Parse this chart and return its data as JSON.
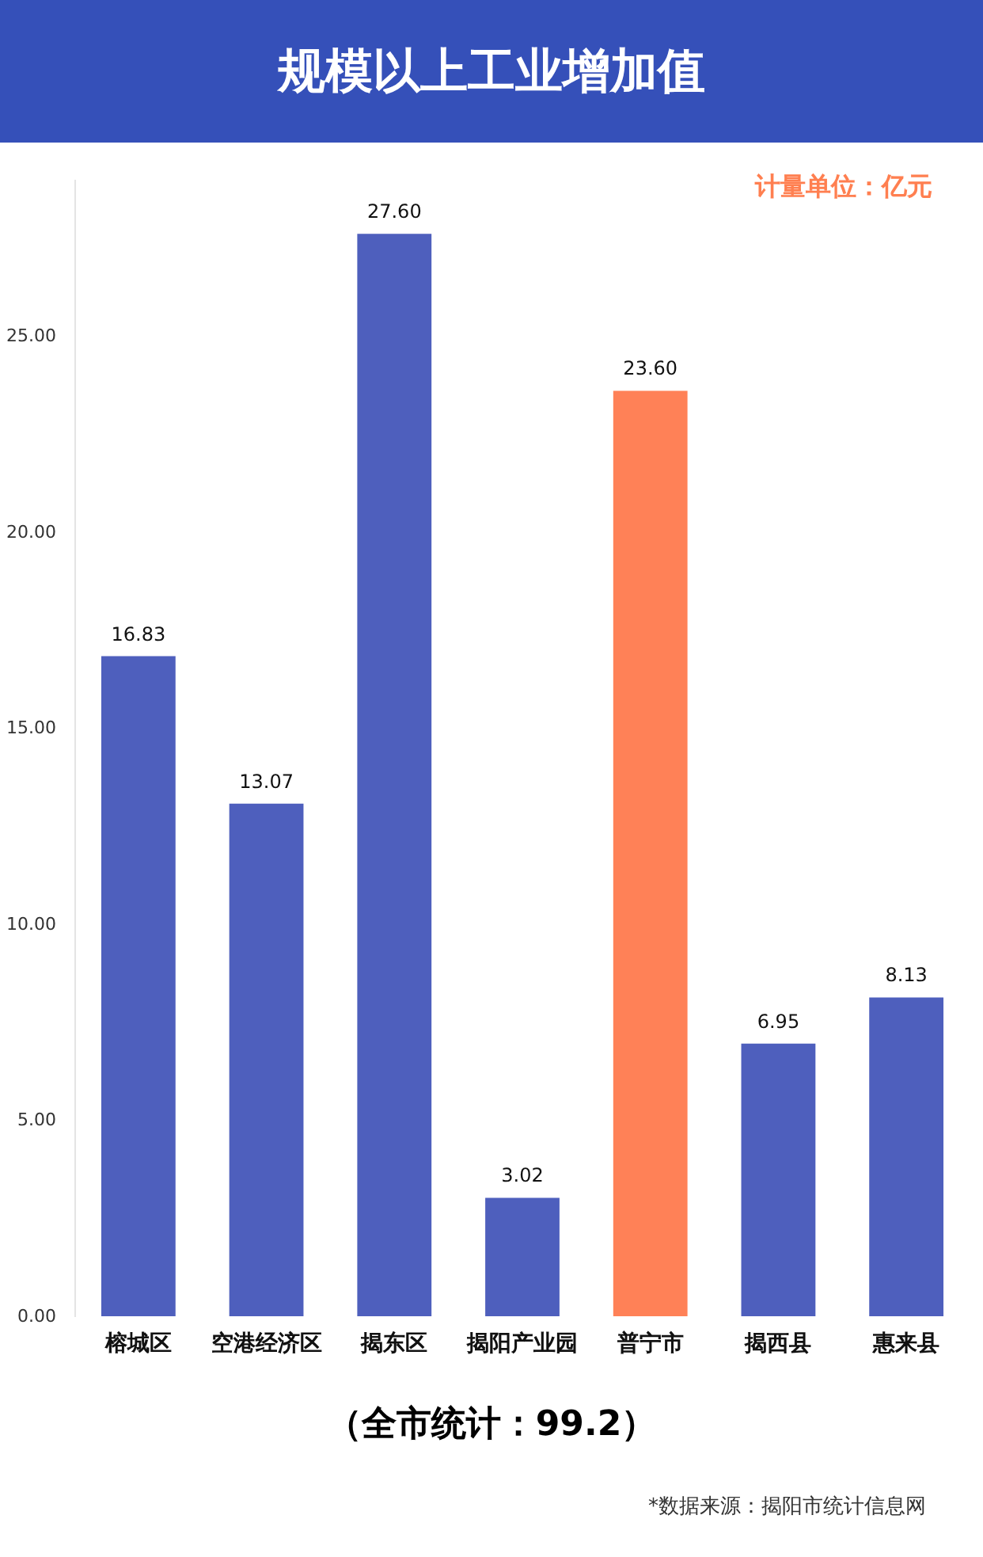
{
  "chart_data": {
    "type": "bar",
    "title": "规模以上工业增加值",
    "categories": [
      "榕城区",
      "空港经济区",
      "揭东区",
      "揭阳产业园",
      "普宁市",
      "揭西县",
      "惠来县"
    ],
    "values": [
      16.83,
      13.07,
      27.6,
      3.02,
      23.6,
      6.95,
      8.13
    ],
    "value_labels": [
      "16.83",
      "13.07",
      "27.60",
      "3.02",
      "23.60",
      "6.95",
      "8.13"
    ],
    "colors": [
      "#4e5fbd",
      "#4e5fbd",
      "#4e5fbd",
      "#4e5fbd",
      "#ff8157",
      "#4e5fbd",
      "#4e5fbd"
    ],
    "ylim": [
      0,
      29
    ],
    "yticks": [
      {
        "value": 0,
        "label": "0.00"
      },
      {
        "value": 5,
        "label": "5.00"
      },
      {
        "value": 10,
        "label": "10.00"
      },
      {
        "value": 15,
        "label": "15.00"
      },
      {
        "value": 20,
        "label": "20.00"
      },
      {
        "value": 25,
        "label": "25.00"
      }
    ],
    "annotations": [
      "计量单位：亿元",
      "（全市统计：99.2）",
      "*数据来源：揭阳市统计信息网"
    ]
  }
}
